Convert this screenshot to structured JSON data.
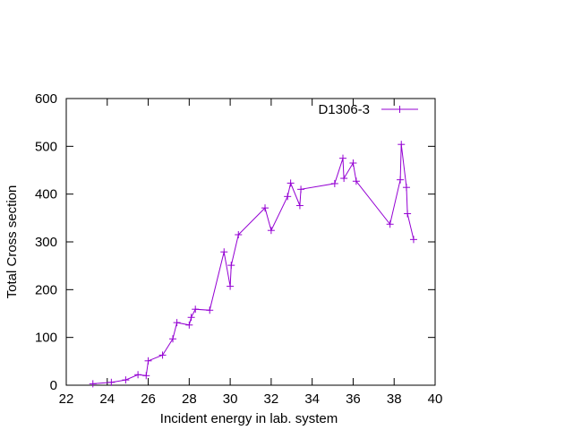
{
  "chart_data": {
    "type": "line",
    "xlabel": "Incident energy in lab. system",
    "ylabel": "Total Cross section",
    "xlim": [
      22,
      40
    ],
    "ylim": [
      0,
      600
    ],
    "x_ticks": [
      22,
      24,
      26,
      28,
      30,
      32,
      34,
      36,
      38,
      40
    ],
    "y_ticks": [
      0,
      100,
      200,
      300,
      400,
      500,
      600
    ],
    "grid": false,
    "legend_position": "top-right",
    "series": [
      {
        "name": "D1306-3",
        "color": "#9400d3",
        "marker": "plus",
        "x": [
          23.3,
          24.2,
          24.9,
          25.5,
          25.9,
          26.0,
          26.7,
          27.2,
          27.4,
          28.0,
          28.1,
          28.3,
          29.0,
          29.7,
          30.0,
          30.05,
          30.4,
          31.7,
          32.0,
          32.8,
          32.95,
          33.4,
          33.45,
          35.1,
          35.5,
          35.55,
          36.0,
          36.15,
          37.8,
          38.3,
          38.35,
          38.6,
          38.65,
          38.95
        ],
        "y": [
          3,
          6,
          11,
          22,
          20,
          51,
          63,
          97,
          131,
          126,
          142,
          159,
          157,
          279,
          207,
          251,
          315,
          371,
          324,
          395,
          423,
          376,
          410,
          422,
          475,
          433,
          465,
          427,
          337,
          430,
          504,
          414,
          359,
          305
        ]
      }
    ]
  }
}
